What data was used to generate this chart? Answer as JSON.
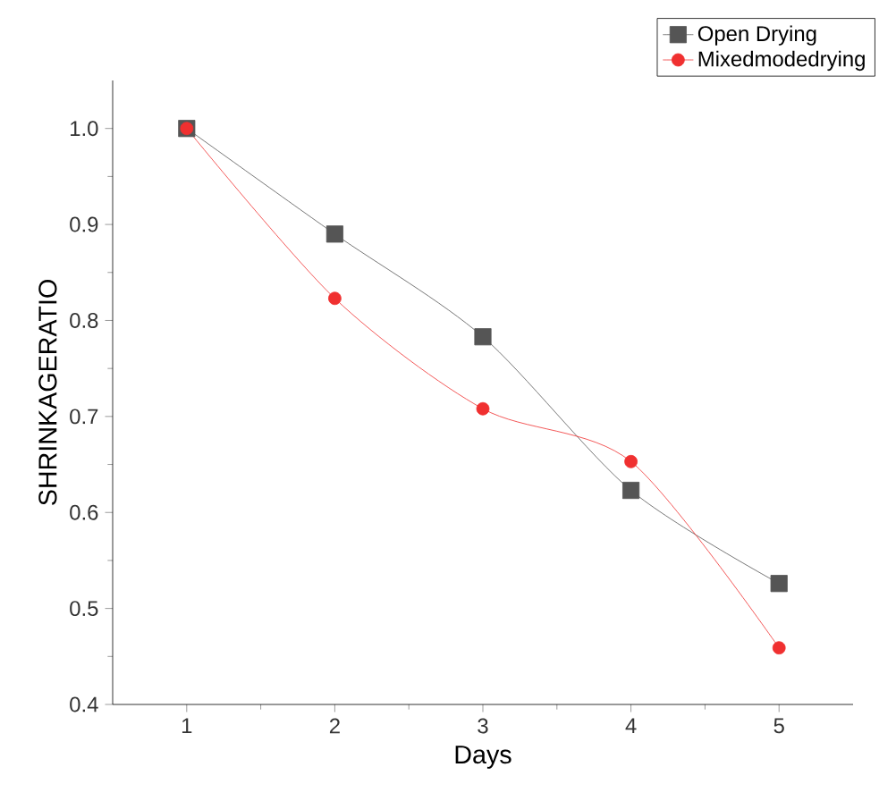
{
  "chart_data": {
    "type": "line",
    "xlabel": "Days",
    "ylabel": "SHRINKAGERATIO",
    "x": [
      1,
      2,
      3,
      4,
      5
    ],
    "series": [
      {
        "name": "Open Drying",
        "color": "#555555",
        "marker": "square",
        "values": [
          1.0,
          0.89,
          0.783,
          0.623,
          0.526
        ]
      },
      {
        "name": "Mixedmodedrying",
        "color": "#f03030",
        "marker": "circle",
        "values": [
          1.0,
          0.823,
          0.708,
          0.653,
          0.459
        ]
      }
    ],
    "xlim": [
      0.5,
      5.5
    ],
    "ylim": [
      0.4,
      1.05
    ],
    "xticks": [
      1,
      2,
      3,
      4,
      5
    ],
    "yticks": [
      0.4,
      0.5,
      0.6,
      0.7,
      0.8,
      0.9,
      {
        "value": 1,
        "label": "1.0"
      }
    ],
    "grid": false,
    "legend": "top right",
    "line_style": "solid"
  }
}
